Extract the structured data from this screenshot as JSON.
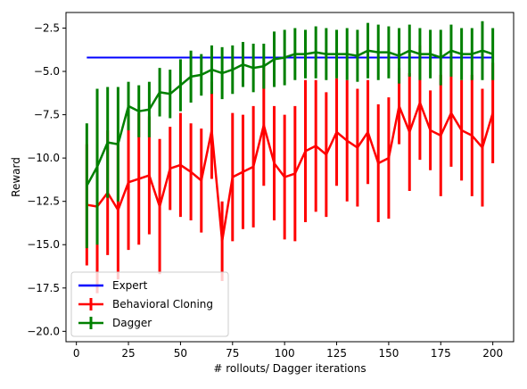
{
  "chart_data": {
    "type": "line",
    "title": "",
    "xlabel": "# rollouts/ Dagger iterations",
    "ylabel": "Reward",
    "xlim": [
      -5,
      210
    ],
    "ylim": [
      -20.6,
      -1.6
    ],
    "xticks": [
      0,
      25,
      50,
      75,
      100,
      125,
      150,
      175,
      200
    ],
    "yticks": [
      -20.0,
      -17.5,
      -15.0,
      -12.5,
      -10.0,
      -7.5,
      -5.0,
      -2.5
    ],
    "grid": false,
    "legend_position": "lower-left",
    "x": [
      5,
      10,
      15,
      20,
      25,
      30,
      35,
      40,
      45,
      50,
      55,
      60,
      65,
      70,
      75,
      80,
      85,
      90,
      95,
      100,
      105,
      110,
      115,
      120,
      125,
      130,
      135,
      140,
      145,
      150,
      155,
      160,
      165,
      170,
      175,
      180,
      185,
      190,
      195,
      200
    ],
    "series": [
      {
        "name": "Expert",
        "color": "#0000ff",
        "kind": "hline",
        "x_range": [
          5,
          200
        ],
        "value": -4.2
      },
      {
        "name": "Behavioral Cloning",
        "color": "#ff0000",
        "kind": "errorbar",
        "values": [
          -12.7,
          -12.8,
          -12.0,
          -13.0,
          -11.4,
          -11.2,
          -11.0,
          -12.8,
          -10.6,
          -10.4,
          -10.8,
          -11.3,
          -8.4,
          -14.8,
          -11.1,
          -10.8,
          -10.5,
          -8.1,
          -10.3,
          -11.1,
          -10.9,
          -9.6,
          -9.3,
          -9.8,
          -8.5,
          -9.0,
          -9.4,
          -8.5,
          -10.3,
          -10.0,
          -7.0,
          -8.5,
          -6.8,
          -8.4,
          -8.7,
          -7.4,
          -8.4,
          -8.7,
          -9.4,
          -7.4
        ],
        "errors": [
          3.5,
          5.0,
          3.6,
          4.0,
          3.9,
          3.8,
          3.4,
          3.9,
          2.4,
          3.0,
          2.8,
          3.0,
          2.8,
          2.3,
          3.7,
          3.3,
          3.5,
          3.5,
          3.3,
          3.6,
          3.9,
          4.1,
          3.8,
          3.6,
          3.1,
          3.5,
          3.4,
          3.0,
          3.4,
          3.5,
          2.2,
          3.4,
          3.3,
          2.3,
          3.5,
          3.1,
          2.9,
          3.5,
          3.4,
          2.9
        ]
      },
      {
        "name": "Dagger",
        "color": "#008000",
        "kind": "errorbar",
        "values": [
          -11.6,
          -10.5,
          -9.1,
          -9.2,
          -7.0,
          -7.3,
          -7.2,
          -6.2,
          -6.3,
          -5.8,
          -5.3,
          -5.2,
          -4.9,
          -5.1,
          -4.9,
          -4.6,
          -4.8,
          -4.7,
          -4.3,
          -4.2,
          -4.0,
          -4.0,
          -3.9,
          -4.0,
          -4.0,
          -4.0,
          -4.1,
          -3.8,
          -3.9,
          -3.9,
          -4.1,
          -3.8,
          -4.0,
          -4.0,
          -4.2,
          -3.8,
          -4.0,
          -4.0,
          -3.8,
          -4.0
        ],
        "errors": [
          3.6,
          4.5,
          3.2,
          3.3,
          1.4,
          1.5,
          1.6,
          1.4,
          1.4,
          1.5,
          1.5,
          1.2,
          1.4,
          1.5,
          1.4,
          1.3,
          1.4,
          1.3,
          1.6,
          1.6,
          1.5,
          1.4,
          1.5,
          1.5,
          1.4,
          1.5,
          1.5,
          1.6,
          1.6,
          1.5,
          1.6,
          1.5,
          1.5,
          1.4,
          1.6,
          1.5,
          1.5,
          1.5,
          1.7,
          1.5
        ]
      }
    ]
  }
}
